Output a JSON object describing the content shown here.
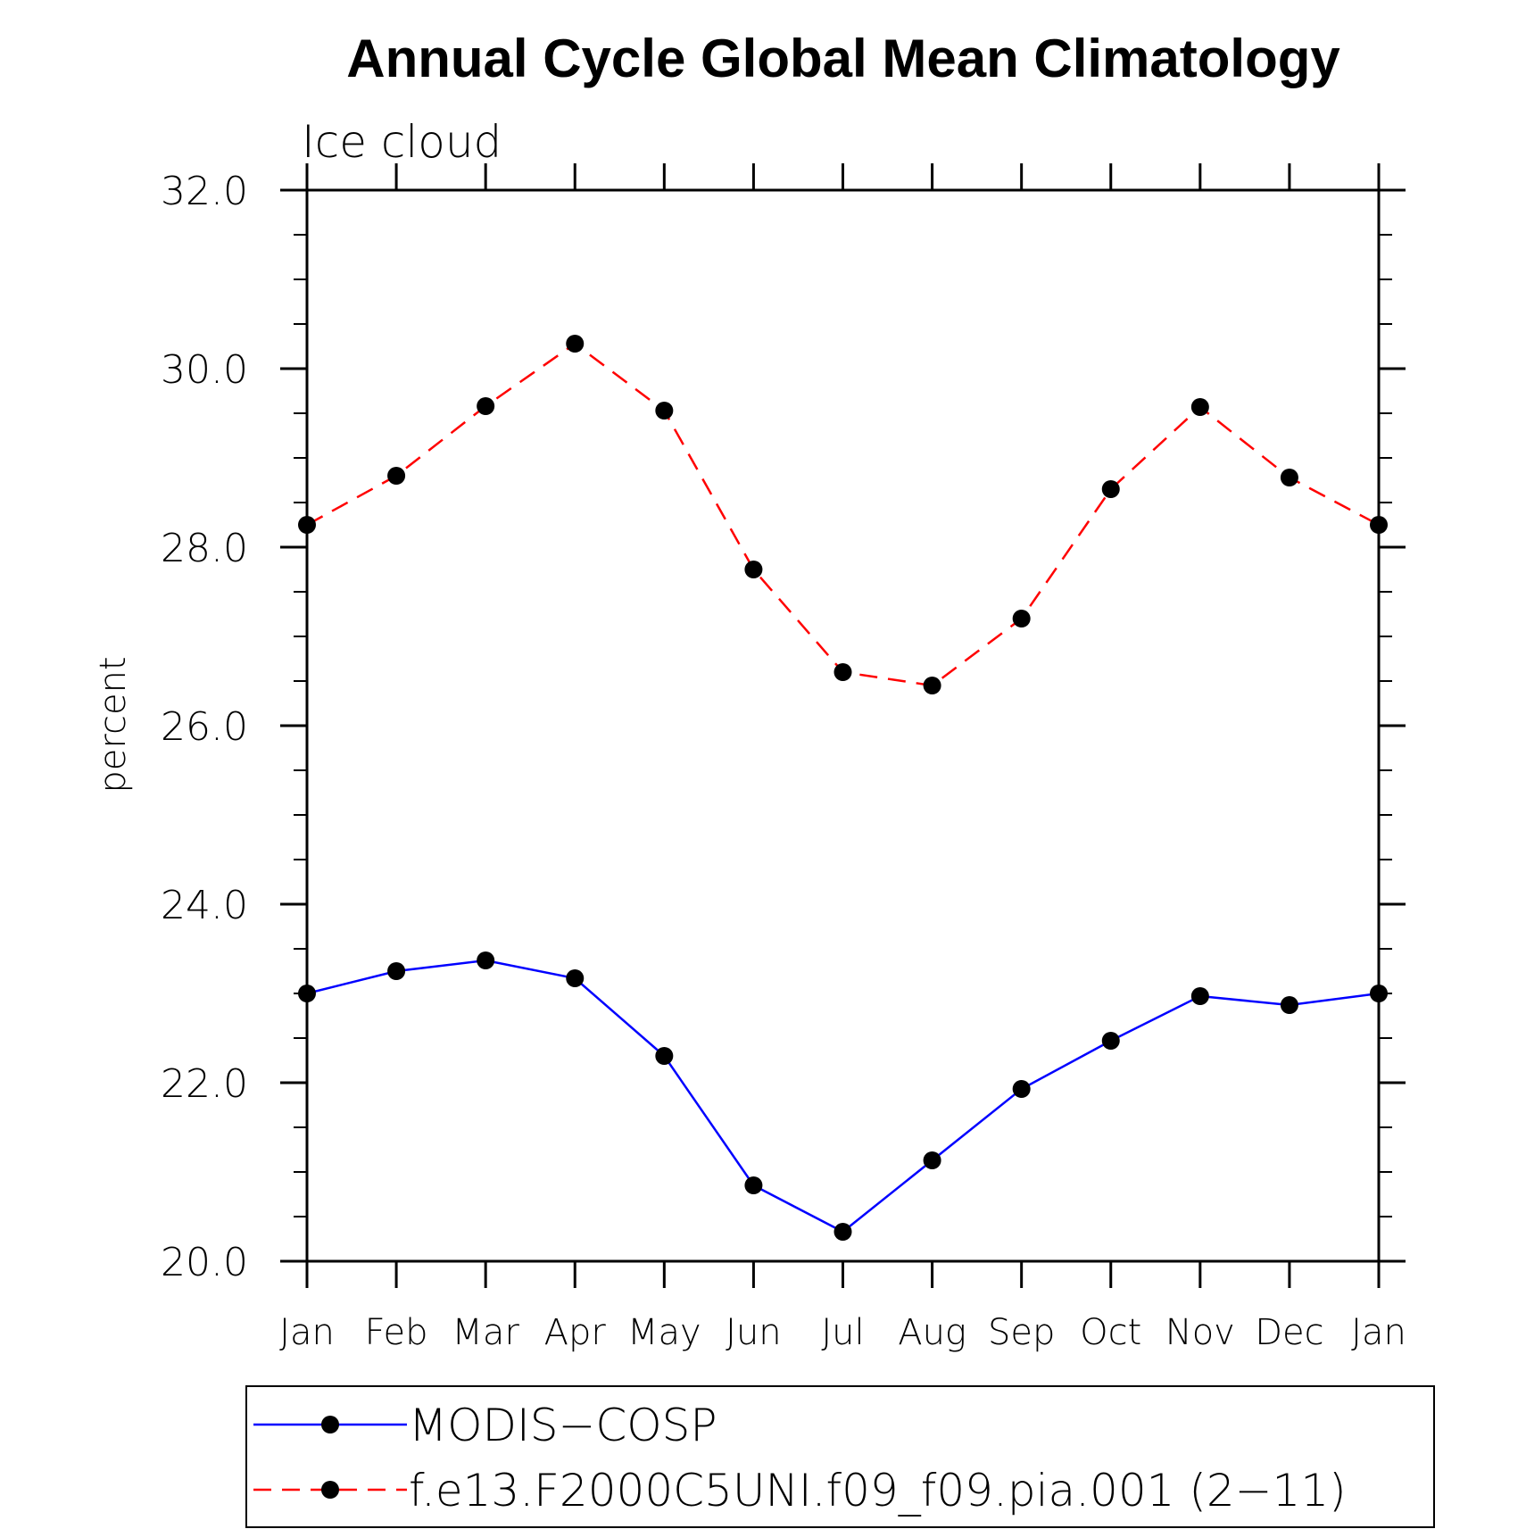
{
  "chart_data": {
    "type": "line",
    "title": "Annual Cycle Global Mean Climatology",
    "subtitle": "Ice cloud",
    "xlabel": "",
    "ylabel": "percent",
    "categories": [
      "Jan",
      "Feb",
      "Mar",
      "Apr",
      "May",
      "Jun",
      "Jul",
      "Aug",
      "Sep",
      "Oct",
      "Nov",
      "Dec",
      "Jan"
    ],
    "ylim": [
      20.0,
      32.0
    ],
    "yticks": [
      20.0,
      22.0,
      24.0,
      26.0,
      28.0,
      30.0,
      32.0
    ],
    "ytick_labels": [
      "20.0",
      "22.0",
      "24.0",
      "26.0",
      "28.0",
      "30.0",
      "32.0"
    ],
    "yminor_step": 0.5,
    "grid": false,
    "legend_position": "bottom",
    "series": [
      {
        "name": "MODIS−COSP",
        "color": "#0000ff",
        "dash": "solid",
        "values": [
          23.0,
          23.25,
          23.37,
          23.17,
          22.3,
          20.85,
          20.33,
          21.13,
          21.93,
          22.47,
          22.97,
          22.87,
          23.0
        ]
      },
      {
        "name": "f.e13.F2000C5UNI.f09_f09.pia.001 (2−11)",
        "color": "#ff0000",
        "dash": "dashed",
        "values": [
          28.25,
          28.8,
          29.58,
          30.28,
          29.53,
          27.75,
          26.6,
          26.45,
          27.2,
          28.65,
          29.57,
          28.78,
          28.25
        ]
      }
    ]
  }
}
